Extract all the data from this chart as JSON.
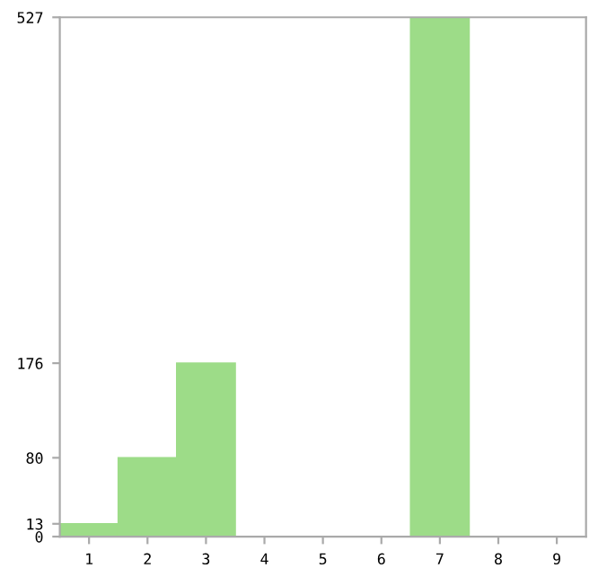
{
  "chart_data": {
    "type": "bar",
    "categories": [
      "1",
      "2",
      "3",
      "4",
      "5",
      "6",
      "7",
      "8",
      "9"
    ],
    "values": [
      13,
      80,
      176,
      0,
      0,
      0,
      527,
      0,
      0
    ],
    "color": "#9ddc88",
    "ylim": [
      0,
      527
    ],
    "yticks": [
      0,
      13,
      80,
      176,
      527
    ],
    "grid": false
  }
}
